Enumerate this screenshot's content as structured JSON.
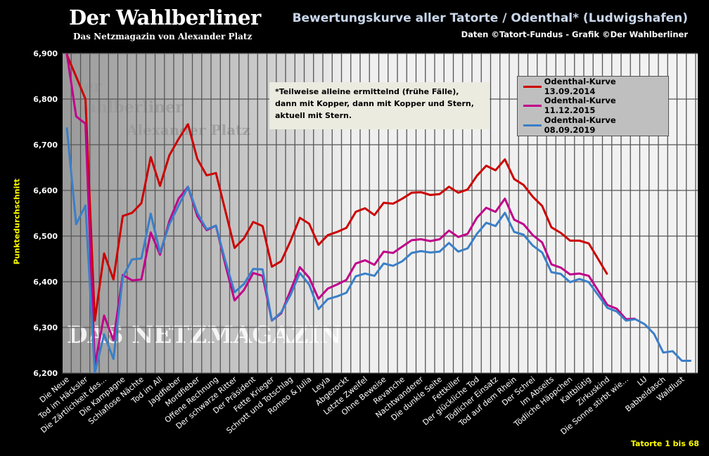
{
  "header": {
    "brand": "Der Wahlberliner",
    "brand_sub": "Das Netzmagazin von Alexander Platz",
    "title": "Bewertungskurve aller Tatorte / Odenthal* (Ludwigshafen)",
    "subtitle": "Daten ©Tatort-Fundus  - Grafik ©Der Wahlberliner"
  },
  "watermark": [
    "Der",
    "Wahlberliner",
    "Alexander Platz",
    "DAS NETZMAGAZIN"
  ],
  "note": {
    "lines": [
      "*Teilweise  alleine ermittelnd (frühe Fälle),",
      "dann mit Kopper, dann mit Kopper und Stern,",
      "aktuell mit Stern."
    ]
  },
  "footer": "Tatorte 1 bis 68",
  "chart_data": {
    "type": "line",
    "title": "Bewertungskurve aller Tatorte / Odenthal* (Ludwigshafen)",
    "ylabel": "Punktedurchschnitt",
    "xlabel": "Tatorte 1 bis 68",
    "ylim": [
      6200,
      6900
    ],
    "yticks": [
      "6,200",
      "6,300",
      "6,400",
      "6,500",
      "6,600",
      "6,700",
      "6,800",
      "6,900"
    ],
    "grid": true,
    "legend_placement": "top-right",
    "x_labels_every_second": [
      "Die Neue",
      "Tod im Häcksler",
      "Die Zärtlichkeit  des...",
      "Die Kampagne",
      "Schlaflose  Nächte",
      "Tod im All",
      "Jagdfieber",
      "Mordfieber",
      "Offene Rechnung",
      "Der schwarze Ritter",
      "Der Präsident",
      "Fette Krieger",
      "Schrott und Totschlag",
      "Romeo & Julia",
      "Leyla",
      "Abgezockt",
      "Letzte Zweifel",
      "Ohne  Beweise",
      "Revanche",
      "Nachtwanderer",
      "Die dunkle  Seite",
      "Fettkiller",
      "Der glückliche  Tod",
      "Tödlicher  Einsatz",
      "Tod auf dem Rhein",
      "Der Schrei",
      "Im Abseits",
      "Tödliche  Häppchen",
      "Kaltblütig",
      "Zirkuskind",
      "Die Sonne stirbt wie...",
      "LU",
      "Babbeldasch",
      "Waldlust"
    ],
    "series": [
      {
        "name": "Odenthal-Kurve 13.09.2014",
        "color": "#cc0000",
        "values": [
          6897,
          6849,
          6800,
          6315,
          6462,
          6405,
          6544,
          6551,
          6572,
          6673,
          6610,
          6677,
          6713,
          6745,
          6669,
          6633,
          6638,
          6556,
          6474,
          6495,
          6531,
          6522,
          6433,
          6445,
          6489,
          6540,
          6527,
          6481,
          6502,
          6509,
          6518,
          6553,
          6561,
          6546,
          6573,
          6571,
          6582,
          6595,
          6596,
          6590,
          6592,
          6608,
          6595,
          6602,
          6632,
          6654,
          6644,
          6668,
          6625,
          6612,
          6586,
          6566,
          6519,
          6507,
          6490,
          6490,
          6484,
          6450,
          6416
        ]
      },
      {
        "name": "Odenthal-Kurve 11.12.2015",
        "color": "#c0008a",
        "values": [
          6900,
          6762,
          6746,
          6218,
          6326,
          6272,
          6415,
          6403,
          6405,
          6508,
          6459,
          6533,
          6582,
          6608,
          6544,
          6513,
          6523,
          6438,
          6359,
          6382,
          6419,
          6413,
          6315,
          6331,
          6381,
          6432,
          6409,
          6363,
          6385,
          6394,
          6404,
          6440,
          6447,
          6437,
          6466,
          6463,
          6477,
          6491,
          6493,
          6489,
          6493,
          6512,
          6498,
          6505,
          6540,
          6562,
          6553,
          6582,
          6536,
          6526,
          6502,
          6486,
          6438,
          6431,
          6416,
          6418,
          6413,
          6381,
          6349,
          6341,
          6318,
          6319
        ]
      },
      {
        "name": "Odenthal-Kurve 08.09.2019",
        "color": "#3a7fc8",
        "values": [
          6738,
          6526,
          6567,
          6200,
          6285,
          6231,
          6410,
          6449,
          6451,
          6549,
          6464,
          6526,
          6567,
          6608,
          6551,
          6515,
          6523,
          6446,
          6377,
          6395,
          6428,
          6427,
          6315,
          6333,
          6371,
          6419,
          6394,
          6340,
          6362,
          6368,
          6376,
          6412,
          6418,
          6413,
          6440,
          6435,
          6445,
          6463,
          6467,
          6464,
          6466,
          6485,
          6466,
          6473,
          6505,
          6529,
          6522,
          6551,
          6509,
          6503,
          6479,
          6464,
          6421,
          6417,
          6399,
          6406,
          6399,
          6371,
          6343,
          6335,
          6315,
          6318,
          6307,
          6286,
          6245,
          6248,
          6227,
          6227
        ]
      }
    ]
  }
}
